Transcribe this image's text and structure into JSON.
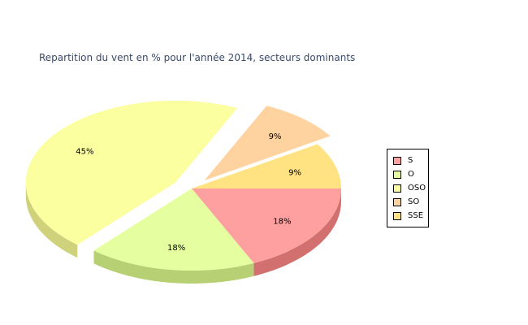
{
  "chart_data": {
    "type": "pie",
    "title": "Repartition du vent en % pour l'année 2014, secteurs dominants",
    "slices": [
      {
        "name": "S",
        "value": 18,
        "label": "18%",
        "color": "#ffa0a0",
        "side": "#d27070"
      },
      {
        "name": "O",
        "value": 18,
        "label": "18%",
        "color": "#e5ffa0",
        "side": "#b8d074"
      },
      {
        "name": "OSO",
        "value": 45,
        "label": "45%",
        "color": "#fbffa0",
        "side": "#cfd27a",
        "exploded": true
      },
      {
        "name": "SO",
        "value": 9,
        "label": "9%",
        "color": "#ffd3a0",
        "side": "#d2aa78",
        "exploded": true
      },
      {
        "name": "SSE",
        "value": 9,
        "label": "9%",
        "color": "#ffe383",
        "side": "#d2b860"
      }
    ],
    "legend_position": "right",
    "style": "3d"
  }
}
